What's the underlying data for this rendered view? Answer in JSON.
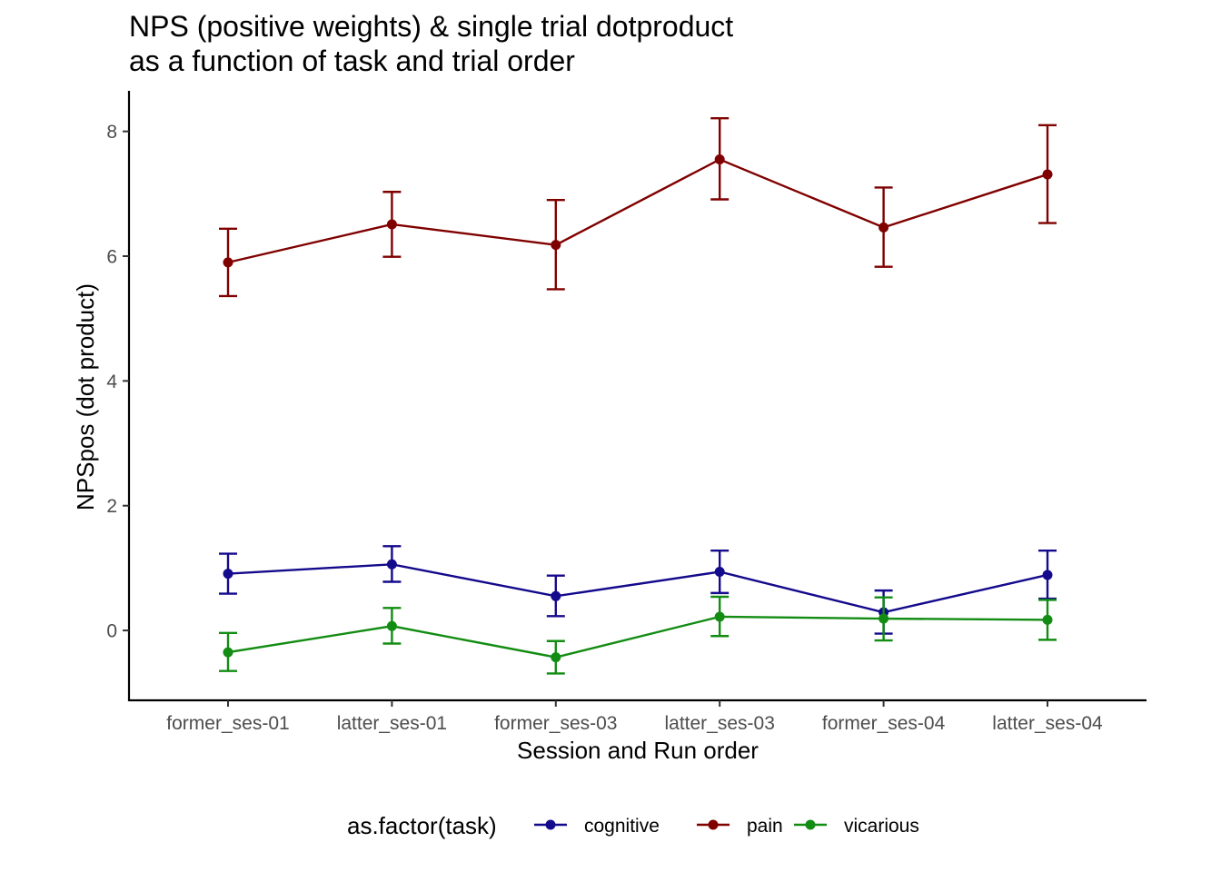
{
  "chart_data": {
    "type": "line",
    "title_lines": [
      "NPS (positive weights) & single trial dotproduct",
      "as a function of task and trial order"
    ],
    "xlabel": "Session and Run order",
    "ylabel": "NPSpos (dot product)",
    "categories": [
      "former_ses-01",
      "latter_ses-01",
      "former_ses-03",
      "latter_ses-03",
      "former_ses-04",
      "latter_ses-04"
    ],
    "ylim": [
      -1.12,
      8.65
    ],
    "yticks": [
      0,
      2,
      4,
      6,
      8
    ],
    "ytick_labels": [
      "0",
      "2",
      "4",
      "6",
      "8"
    ],
    "grid": false,
    "legend": {
      "title": "as.factor(task)",
      "position": "bottom"
    },
    "series": [
      {
        "name": "cognitive",
        "color": "#140a8c",
        "values": [
          0.91,
          1.06,
          0.55,
          0.94,
          0.29,
          0.89
        ],
        "lower": [
          0.59,
          0.78,
          0.23,
          0.6,
          -0.05,
          0.51
        ],
        "upper": [
          1.23,
          1.35,
          0.88,
          1.28,
          0.64,
          1.28
        ]
      },
      {
        "name": "pain",
        "color": "#800000",
        "values": [
          5.9,
          6.51,
          6.18,
          7.55,
          6.46,
          7.31
        ],
        "lower": [
          5.36,
          5.99,
          5.47,
          6.91,
          5.83,
          6.53
        ],
        "upper": [
          6.44,
          7.03,
          6.9,
          8.21,
          7.1,
          8.1
        ]
      },
      {
        "name": "vicarious",
        "color": "#128c12",
        "values": [
          -0.35,
          0.07,
          -0.43,
          0.22,
          0.19,
          0.17
        ],
        "lower": [
          -0.65,
          -0.21,
          -0.69,
          -0.09,
          -0.16,
          -0.15
        ],
        "upper": [
          -0.04,
          0.36,
          -0.17,
          0.54,
          0.53,
          0.49
        ]
      }
    ]
  }
}
